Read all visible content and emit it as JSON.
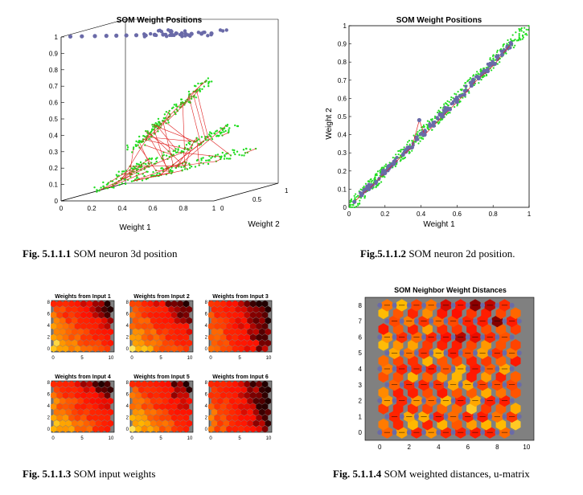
{
  "colors": {
    "neuron": "#6a6aa8",
    "neighbor_link": "#e02020",
    "sample": "#22dd22",
    "axis": "#000000",
    "hex_background": "#808080"
  },
  "captions": {
    "fig1": {
      "num": "Fig. 5.1.1.1",
      "text": "SOM neuron 3d position"
    },
    "fig2": {
      "num": "Fig.5.1.1.2",
      "text": "SOM neuron 2d position."
    },
    "fig3": {
      "num": "Fig. 5.1.1.3",
      "text": "SOM input weights"
    },
    "fig4": {
      "num": "Fig.  5.1.1.4",
      "text": "SOM weighted distances, u-matrix"
    }
  },
  "chart_data": [
    {
      "id": "fig1",
      "type": "scatter",
      "title": "SOM Weight Positions",
      "xlabel": "Weight 1",
      "ylabel": "",
      "zlabel": "Weight 2",
      "xlim": [
        0,
        1
      ],
      "ylim": [
        0,
        1
      ],
      "xticks": [
        "0",
        "0.2",
        "0.4",
        "0.6",
        "0.8",
        "1"
      ],
      "yticks": [
        "0",
        "0.1",
        "0.2",
        "0.3",
        "0.4",
        "0.5",
        "0.6",
        "0.7",
        "0.8",
        "0.9",
        "1"
      ],
      "zticks": [
        "0",
        "0.5",
        "1"
      ],
      "neuron_rows_xz": [
        {
          "x": [
            0.05,
            0.12,
            0.2,
            0.27,
            0.33,
            0.39,
            0.45,
            0.5,
            0.56,
            0.61,
            0.66,
            0.72,
            0.78,
            0.84,
            0.9
          ],
          "z": [
            0.1,
            0.15,
            0.2,
            0.25,
            0.3,
            0.35,
            0.4,
            0.45,
            0.5,
            0.55,
            0.6,
            0.65,
            0.7,
            0.75,
            0.8
          ]
        }
      ],
      "grid": false
    },
    {
      "id": "fig2",
      "type": "scatter",
      "title": "SOM Weight Positions",
      "xlabel": "Weight 1",
      "ylabel": "Weight 2",
      "xlim": [
        0,
        1
      ],
      "ylim": [
        0,
        1
      ],
      "xticks": [
        "0",
        "0.2",
        "0.4",
        "0.6",
        "0.8",
        "1"
      ],
      "yticks": [
        "0",
        "0.1",
        "0.2",
        "0.3",
        "0.4",
        "0.5",
        "0.6",
        "0.7",
        "0.8",
        "0.9",
        "1"
      ],
      "neurons": [
        [
          0.03,
          0.03
        ],
        [
          0.07,
          0.07
        ],
        [
          0.11,
          0.1
        ],
        [
          0.15,
          0.14
        ],
        [
          0.2,
          0.19
        ],
        [
          0.25,
          0.24
        ],
        [
          0.3,
          0.29
        ],
        [
          0.35,
          0.33
        ],
        [
          0.39,
          0.48
        ],
        [
          0.42,
          0.4
        ],
        [
          0.47,
          0.45
        ],
        [
          0.52,
          0.5
        ],
        [
          0.56,
          0.54
        ],
        [
          0.6,
          0.58
        ],
        [
          0.64,
          0.62
        ],
        [
          0.68,
          0.67
        ],
        [
          0.72,
          0.71
        ],
        [
          0.77,
          0.75
        ],
        [
          0.81,
          0.79
        ],
        [
          0.85,
          0.84
        ],
        [
          0.9,
          0.9
        ]
      ],
      "grid": false
    },
    {
      "id": "fig3",
      "type": "heatmap",
      "subplots": [
        {
          "title": "Weights from Input 1",
          "pattern": "diag_dark_topright"
        },
        {
          "title": "Weights from Input 2",
          "pattern": "diag_dark_topright"
        },
        {
          "title": "Weights from Input 3",
          "pattern": "dark_right"
        },
        {
          "title": "Weights from Input 4",
          "pattern": "diag_dark_topright"
        },
        {
          "title": "Weights from Input 5",
          "pattern": "diag_dark_topright"
        },
        {
          "title": "Weights from Input 6",
          "pattern": "dark_right"
        }
      ],
      "xticks": [
        "0",
        "5",
        "10"
      ],
      "yticks": [
        "0",
        "2",
        "4",
        "6",
        "8"
      ],
      "grid_cols": 10,
      "grid_rows": 9
    },
    {
      "id": "fig4",
      "type": "heatmap",
      "title": "SOM Neighbor Weight Distances",
      "xticks": [
        "0",
        "2",
        "4",
        "6",
        "8",
        "10"
      ],
      "yticks": [
        "0",
        "1",
        "2",
        "3",
        "4",
        "5",
        "6",
        "7",
        "8"
      ],
      "xlim": [
        -1,
        10.5
      ],
      "ylim": [
        -0.5,
        8.5
      ],
      "grid_cols": 10,
      "grid_rows": 9
    }
  ]
}
